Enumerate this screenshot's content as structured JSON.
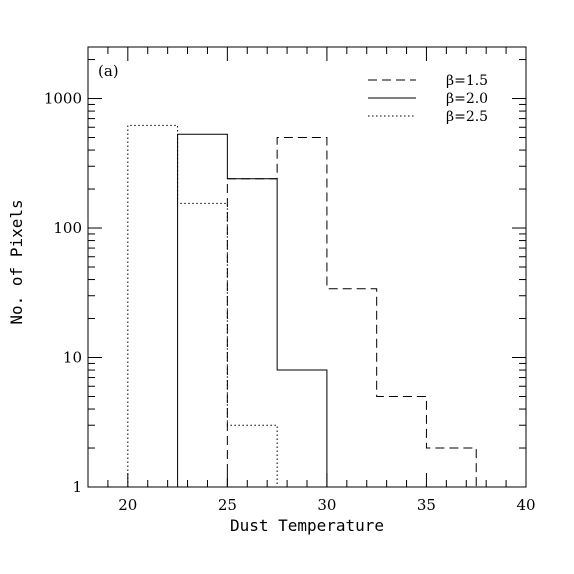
{
  "chart_data": {
    "type": "histogram",
    "panel_label": "(a)",
    "xlabel": "Dust Temperature",
    "ylabel": "No. of Pixels",
    "xlim": [
      18,
      40
    ],
    "ylim": [
      1,
      2500
    ],
    "yscale": "log",
    "xticks": [
      20,
      25,
      30,
      35,
      40
    ],
    "yticks": [
      1,
      10,
      100,
      1000
    ],
    "ytick_labels": [
      "1",
      "10",
      "100",
      "1000"
    ],
    "legend_position": "top-right",
    "series": [
      {
        "name": "β=1.5",
        "style": "dashed",
        "bin_edges": [
          25,
          27.5,
          30,
          32.5,
          35,
          37.5
        ],
        "values": [
          240,
          500,
          34,
          5,
          2
        ]
      },
      {
        "name": "β=2.0",
        "style": "solid",
        "bin_edges": [
          22.5,
          25,
          27.5,
          30
        ],
        "values": [
          530,
          240,
          8
        ]
      },
      {
        "name": "β=2.5",
        "style": "dotted",
        "bin_edges": [
          20,
          22.5,
          25,
          27.5
        ],
        "values": [
          620,
          155,
          3
        ]
      }
    ]
  }
}
